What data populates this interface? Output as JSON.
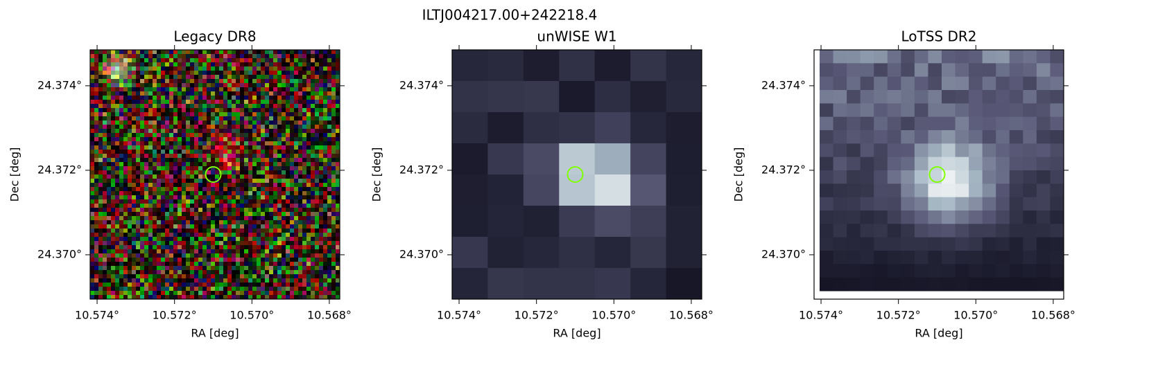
{
  "title": "ILTJ004217.00+242218.4",
  "chart_data": [
    {
      "type": "image",
      "title": "Legacy DR8",
      "xlabel": "RA [deg]",
      "ylabel": "Dec [deg]",
      "colormap": "rgb-noise",
      "xlim": [
        10.57418,
        10.56773
      ],
      "ylim": [
        24.36895,
        24.37485
      ],
      "xticks": [
        {
          "value": 10.574,
          "label": "10.574°"
        },
        {
          "value": 10.572,
          "label": "10.572°"
        },
        {
          "value": 10.57,
          "label": "10.570°"
        },
        {
          "value": 10.568,
          "label": "10.568°"
        }
      ],
      "yticks": [
        {
          "value": 24.37,
          "label": "24.370°"
        },
        {
          "value": 24.372,
          "label": "24.372°"
        },
        {
          "value": 24.374,
          "label": "24.374°"
        }
      ],
      "marker": {
        "x": 10.571,
        "y": 24.3719,
        "color": "#7fff00"
      }
    },
    {
      "type": "image",
      "title": "unWISE W1",
      "xlabel": "RA [deg]",
      "ylabel": "Dec [deg]",
      "colormap": "bone-coarse",
      "xlim": [
        10.57418,
        10.56773
      ],
      "ylim": [
        24.36895,
        24.37485
      ],
      "xticks": [
        {
          "value": 10.574,
          "label": "10.574°"
        },
        {
          "value": 10.572,
          "label": "10.572°"
        },
        {
          "value": 10.57,
          "label": "10.570°"
        },
        {
          "value": 10.568,
          "label": "10.568°"
        }
      ],
      "yticks": [
        {
          "value": 24.37,
          "label": "24.370°"
        },
        {
          "value": 24.372,
          "label": "24.372°"
        },
        {
          "value": 24.374,
          "label": "24.374°"
        }
      ],
      "marker": {
        "x": 10.571,
        "y": 24.3719,
        "color": "#7fff00"
      }
    },
    {
      "type": "image",
      "title": "LoTSS DR2",
      "xlabel": "RA [deg]",
      "ylabel": "Dec [deg]",
      "colormap": "bone-fine",
      "xlim": [
        10.57418,
        10.56773
      ],
      "ylim": [
        24.36895,
        24.37485
      ],
      "xticks": [
        {
          "value": 10.574,
          "label": "10.574°"
        },
        {
          "value": 10.572,
          "label": "10.572°"
        },
        {
          "value": 10.57,
          "label": "10.570°"
        },
        {
          "value": 10.568,
          "label": "10.568°"
        }
      ],
      "yticks": [
        {
          "value": 24.37,
          "label": "24.370°"
        },
        {
          "value": 24.372,
          "label": "24.372°"
        },
        {
          "value": 24.374,
          "label": "24.374°"
        }
      ],
      "marker": {
        "x": 10.571,
        "y": 24.3719,
        "color": "#7fff00"
      }
    }
  ]
}
